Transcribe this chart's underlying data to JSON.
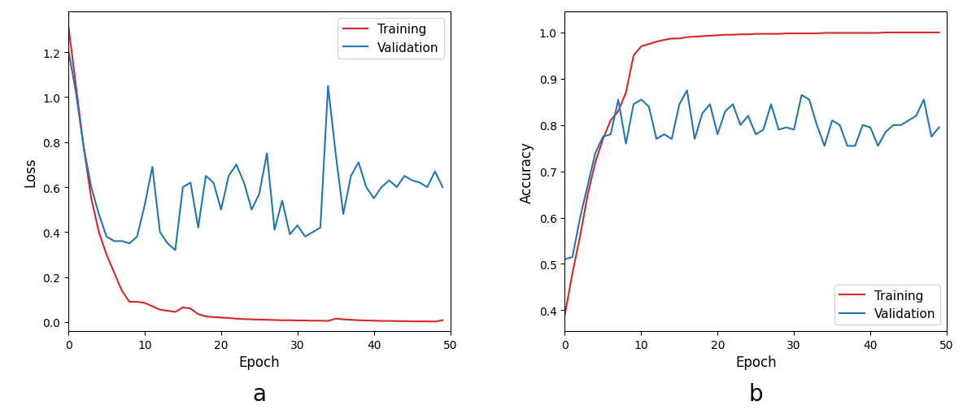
{
  "loss_train": [
    1.32,
    1.05,
    0.78,
    0.55,
    0.4,
    0.3,
    0.22,
    0.14,
    0.09,
    0.09,
    0.085,
    0.07,
    0.055,
    0.05,
    0.045,
    0.065,
    0.06,
    0.035,
    0.025,
    0.022,
    0.02,
    0.018,
    0.015,
    0.013,
    0.012,
    0.011,
    0.01,
    0.009,
    0.008,
    0.008,
    0.007,
    0.007,
    0.006,
    0.006,
    0.005,
    0.015,
    0.012,
    0.01,
    0.008,
    0.007,
    0.006,
    0.005,
    0.005,
    0.004,
    0.004,
    0.003,
    0.003,
    0.003,
    0.002,
    0.008
  ],
  "loss_val": [
    1.21,
    1.02,
    0.78,
    0.6,
    0.48,
    0.38,
    0.36,
    0.36,
    0.35,
    0.38,
    0.52,
    0.69,
    0.4,
    0.35,
    0.32,
    0.6,
    0.62,
    0.42,
    0.65,
    0.62,
    0.5,
    0.65,
    0.7,
    0.62,
    0.5,
    0.57,
    0.75,
    0.41,
    0.54,
    0.39,
    0.43,
    0.38,
    0.4,
    0.42,
    1.05,
    0.75,
    0.48,
    0.65,
    0.71,
    0.6,
    0.55,
    0.6,
    0.63,
    0.6,
    0.65,
    0.63,
    0.62,
    0.6,
    0.67,
    0.6
  ],
  "acc_train": [
    0.39,
    0.48,
    0.56,
    0.65,
    0.72,
    0.77,
    0.81,
    0.83,
    0.87,
    0.95,
    0.97,
    0.975,
    0.98,
    0.984,
    0.987,
    0.987,
    0.99,
    0.991,
    0.992,
    0.993,
    0.994,
    0.995,
    0.995,
    0.996,
    0.996,
    0.997,
    0.997,
    0.997,
    0.997,
    0.998,
    0.998,
    0.998,
    0.998,
    0.998,
    0.999,
    0.999,
    0.999,
    0.999,
    0.999,
    0.999,
    0.999,
    0.999,
    1.0,
    1.0,
    1.0,
    1.0,
    1.0,
    1.0,
    1.0,
    1.0
  ],
  "acc_val": [
    0.51,
    0.515,
    0.6,
    0.67,
    0.74,
    0.775,
    0.78,
    0.855,
    0.76,
    0.845,
    0.855,
    0.84,
    0.77,
    0.78,
    0.77,
    0.845,
    0.875,
    0.77,
    0.825,
    0.845,
    0.78,
    0.83,
    0.845,
    0.8,
    0.82,
    0.78,
    0.79,
    0.845,
    0.79,
    0.795,
    0.79,
    0.865,
    0.855,
    0.8,
    0.755,
    0.81,
    0.8,
    0.755,
    0.755,
    0.8,
    0.795,
    0.755,
    0.785,
    0.8,
    0.8,
    0.81,
    0.82,
    0.855,
    0.775,
    0.795
  ],
  "train_color": "#d62728",
  "val_color": "#1f77b4",
  "xlabel": "Epoch",
  "ylabel_loss": "Loss",
  "ylabel_acc": "Accuracy",
  "label_a": "a",
  "label_b": "b",
  "legend_training": "Training",
  "legend_validation": "Validation"
}
